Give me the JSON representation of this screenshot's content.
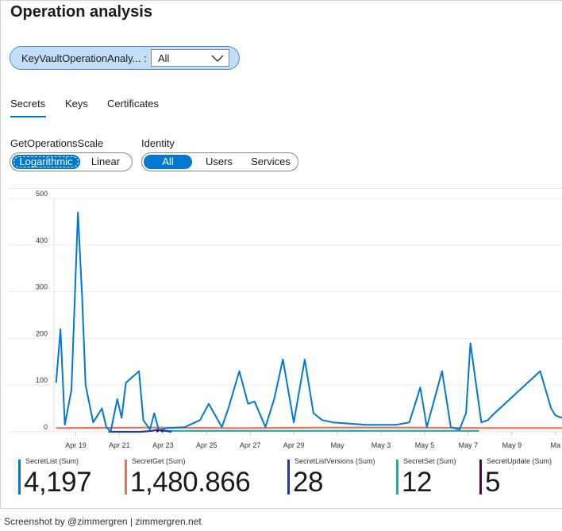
{
  "page": {
    "title": "Operation analysis",
    "credit": "Screenshot by @zimmergren | zimmergren.net"
  },
  "parameter": {
    "label": "KeyVaultOperationAnaly... :",
    "value": "All"
  },
  "tabs": [
    "Secrets",
    "Keys",
    "Certificates"
  ],
  "selected_tab": "Secrets",
  "scale": {
    "label": "GetOperationsScale",
    "options": [
      "Logarithmic",
      "Linear"
    ],
    "selected": "Logarithmic"
  },
  "identity": {
    "label": "Identity",
    "options": [
      "All",
      "Users",
      "Services"
    ],
    "selected": "All"
  },
  "chart_data": {
    "type": "line",
    "ylim": [
      0,
      500
    ],
    "yticks": [
      0,
      100,
      200,
      300,
      400,
      500
    ],
    "x_tick_labels": [
      "Apr 19",
      "Apr 21",
      "Apr 23",
      "Apr 25",
      "Apr 27",
      "Apr 29",
      "May",
      "May 3",
      "May 5",
      "May 7",
      "May 9",
      "Ma"
    ],
    "x_ticks": [
      18.5,
      20.5,
      22.5,
      24.5,
      26.5,
      28.5,
      30.5,
      32.5,
      34.5,
      36.5,
      38.5,
      40.5
    ],
    "xlim": [
      17.5,
      40.8
    ],
    "grid": true,
    "series": [
      {
        "name": "SecretList (Sum)",
        "color": "#0078d4",
        "x": [
          17.6,
          17.8,
          18.0,
          18.3,
          18.6,
          18.8,
          18.95,
          19.3,
          19.7,
          19.9,
          20.1,
          20.4,
          20.6,
          20.8,
          21.4,
          21.6,
          21.9,
          22.1,
          22.3,
          22.4,
          22.7,
          23.5,
          24.2,
          24.6,
          25.2,
          25.5,
          26.0,
          26.4,
          26.7,
          27.2,
          27.6,
          28.0,
          28.5,
          29.0,
          29.4,
          29.8,
          30.3,
          31.8,
          33.2,
          33.8,
          34.3,
          34.6,
          35.3,
          35.7,
          36.1,
          36.4,
          36.6,
          37.1,
          37.4,
          37.6,
          39.8,
          40.3,
          40.5,
          40.8
        ],
        "y": [
          105,
          220,
          15,
          90,
          470,
          280,
          100,
          20,
          50,
          10,
          0,
          70,
          30,
          105,
          130,
          25,
          5,
          40,
          5,
          5,
          8,
          10,
          25,
          60,
          10,
          50,
          130,
          60,
          65,
          10,
          70,
          155,
          20,
          155,
          40,
          25,
          20,
          15,
          15,
          20,
          95,
          10,
          130,
          10,
          5,
          40,
          190,
          20,
          25,
          35,
          130,
          50,
          35,
          30
        ]
      },
      {
        "name": "SecretGet (Sum)",
        "color": "#e8735a",
        "x": [
          17.6,
          22.0,
          26.0,
          30.0,
          34.0,
          37.5,
          40.8
        ],
        "y": [
          8,
          9,
          8,
          9,
          9,
          8,
          8
        ]
      },
      {
        "name": "SecretListVersions (Sum)",
        "color": "#243a8a",
        "x": [
          20.0,
          20.8,
          21.5,
          22.0,
          22.3,
          22.6,
          22.9
        ],
        "y": [
          0,
          0,
          0,
          2,
          5,
          2,
          0
        ]
      },
      {
        "name": "SecretSet (Sum)",
        "color": "#2aa6a6",
        "x": [
          22.5,
          24.0,
          26.0,
          28.0,
          30.0,
          32.0,
          34.0,
          36.0,
          37.0
        ],
        "y": [
          2,
          2,
          2,
          2,
          2,
          2,
          2,
          2,
          2
        ]
      },
      {
        "name": "SecretUpdate (Sum)",
        "color": "#4b0b3c",
        "x": [
          22.2,
          22.35,
          22.5
        ],
        "y": [
          0,
          4,
          0
        ]
      }
    ]
  },
  "tiles": [
    {
      "label": "SecretList (Sum)",
      "value": "4,197",
      "color": "#0078d4"
    },
    {
      "label": "SecretGet (Sum)",
      "value": "1,480.866",
      "color": "#e8735a"
    },
    {
      "label": "SecretListVersions (Sum)",
      "value": "28",
      "color": "#243a8a"
    },
    {
      "label": "SecretSet (Sum)",
      "value": "12",
      "color": "#2aa6a6"
    },
    {
      "label": "SecretUpdate (Sum)",
      "value": "5",
      "color": "#4b0b3c"
    }
  ],
  "icons": {
    "dropdown": "chevron-down-icon"
  }
}
